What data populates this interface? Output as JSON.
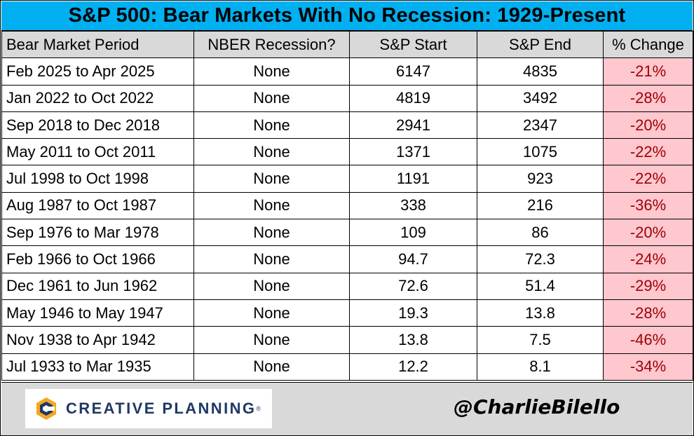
{
  "chart_data": {
    "type": "table",
    "title": "S&P 500: Bear Markets With No Recession: 1929-Present",
    "columns": [
      "Bear Market Period",
      "NBER Recession?",
      "S&P Start",
      "S&P End",
      "% Change"
    ],
    "rows": [
      [
        "Feb 2025 to Apr 2025",
        "None",
        "6147",
        "4835",
        "-21%"
      ],
      [
        "Jan 2022 to Oct 2022",
        "None",
        "4819",
        "3492",
        "-28%"
      ],
      [
        "Sep 2018 to Dec 2018",
        "None",
        "2941",
        "2347",
        "-20%"
      ],
      [
        "May 2011 to Oct 2011",
        "None",
        "1371",
        "1075",
        "-22%"
      ],
      [
        "Jul 1998 to Oct 1998",
        "None",
        "1191",
        "923",
        "-22%"
      ],
      [
        "Aug 1987 to Oct 1987",
        "None",
        "338",
        "216",
        "-36%"
      ],
      [
        "Sep 1976 to Mar 1978",
        "None",
        "109",
        "86",
        "-20%"
      ],
      [
        "Feb 1966 to Oct 1966",
        "None",
        "94.7",
        "72.3",
        "-24%"
      ],
      [
        "Dec 1961 to Jun 1962",
        "None",
        "72.6",
        "51.4",
        "-29%"
      ],
      [
        "May 1946 to May 1947",
        "None",
        "19.3",
        "13.8",
        "-28%"
      ],
      [
        "Nov 1938 to Apr 1942",
        "None",
        "13.8",
        "7.5",
        "-46%"
      ],
      [
        "Jul 1933 to Mar 1935",
        "None",
        "12.2",
        "8.1",
        "-34%"
      ]
    ]
  },
  "footer": {
    "logo_text": "CREATIVE PLANNING",
    "handle": "@CharlieBilello"
  },
  "colors": {
    "title_bg": "#00b0f0",
    "header_bg": "#d9d9d9",
    "negative_bg": "#ffc7ce",
    "negative_text": "#9c0006",
    "logo_blue": "#1f3864",
    "logo_orange": "#f5a623"
  }
}
